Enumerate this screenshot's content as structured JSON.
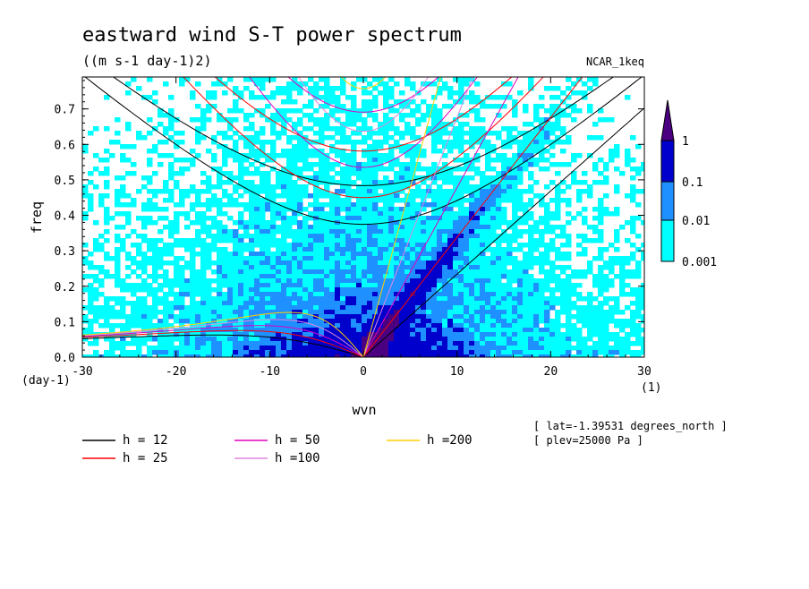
{
  "chart_data": {
    "type": "heatmap",
    "title": "eastward wind S-T power spectrum",
    "subtitle": "((m s-1 day-1)2)",
    "tag": "NCAR_1keq",
    "xlabel": "wvn",
    "ylabel": "freq",
    "x_unit_label": "(1)",
    "y_unit_label": "(day-1)",
    "xlim": [
      -30,
      30
    ],
    "ylim": [
      0,
      0.79
    ],
    "xticks": [
      {
        "v": -30,
        "label": "-30"
      },
      {
        "v": -20,
        "label": "-20"
      },
      {
        "v": -10,
        "label": "-10"
      },
      {
        "v": 0,
        "label": "0"
      },
      {
        "v": 10,
        "label": "10"
      },
      {
        "v": 20,
        "label": "20"
      },
      {
        "v": 30,
        "label": "30"
      }
    ],
    "yticks": [
      {
        "v": 0,
        "label": "0.0"
      },
      {
        "v": 0.1,
        "label": "0.1"
      },
      {
        "v": 0.2,
        "label": "0.2"
      },
      {
        "v": 0.3,
        "label": "0.3"
      },
      {
        "v": 0.4,
        "label": "0.4"
      },
      {
        "v": 0.5,
        "label": "0.5"
      },
      {
        "v": 0.6,
        "label": "0.6"
      },
      {
        "v": 0.7,
        "label": "0.7"
      }
    ],
    "colorbar": {
      "levels": [
        "0.001",
        "0.01",
        "0.1",
        "1"
      ],
      "colors": [
        "#00ffff",
        "#1e90ff",
        "#0000cd",
        "#4b0082"
      ]
    },
    "dispersion_curves": [
      {
        "label": "h = 12",
        "h": 12,
        "color": "#000000"
      },
      {
        "label": "h = 25",
        "h": 25,
        "color": "#ff0000"
      },
      {
        "label": "h = 50",
        "h": 50,
        "color": "#e000c0"
      },
      {
        "label": "h =100",
        "h": 100,
        "color": "#dd88dd"
      },
      {
        "label": "h =200",
        "h": 200,
        "color": "#ffd000"
      }
    ],
    "annotations": [
      "[ lat=-1.39531 degrees_north ]",
      "[ plev=25000 Pa ]"
    ]
  }
}
